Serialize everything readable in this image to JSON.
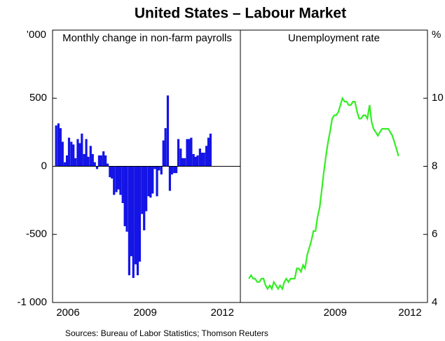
{
  "title": "United States – Labour Market",
  "source": "Sources: Bureau of Labor Statistics; Thomson Reuters",
  "chart_data": [
    {
      "type": "bar",
      "title": "Monthly change in non-farm payrolls",
      "y_unit": "’000",
      "color": "#1414e6",
      "x": [
        2006.04,
        2006.13,
        2006.21,
        2006.29,
        2006.38,
        2006.46,
        2006.54,
        2006.63,
        2006.71,
        2006.79,
        2006.88,
        2006.96,
        2007.04,
        2007.13,
        2007.21,
        2007.29,
        2007.38,
        2007.46,
        2007.54,
        2007.63,
        2007.71,
        2007.79,
        2007.88,
        2007.96,
        2008.04,
        2008.13,
        2008.21,
        2008.29,
        2008.38,
        2008.46,
        2008.54,
        2008.63,
        2008.71,
        2008.79,
        2008.88,
        2008.96,
        2009.04,
        2009.13,
        2009.21,
        2009.29,
        2009.38,
        2009.46,
        2009.54,
        2009.63,
        2009.71,
        2009.79,
        2009.88,
        2009.96,
        2010.04,
        2010.13,
        2010.21,
        2010.29,
        2010.38,
        2010.46,
        2010.54,
        2010.63,
        2010.71,
        2010.79,
        2010.88,
        2010.96,
        2011.04,
        2011.13,
        2011.21,
        2011.29,
        2011.38,
        2011.46,
        2011.54,
        2011.63,
        2011.71,
        2011.79,
        2011.88,
        2011.96,
        2012.04
      ],
      "values": [
        300,
        315,
        280,
        180,
        30,
        80,
        210,
        180,
        160,
        60,
        200,
        170,
        240,
        90,
        200,
        70,
        150,
        90,
        30,
        -20,
        80,
        80,
        110,
        80,
        20,
        -80,
        -90,
        -210,
        -190,
        -170,
        -210,
        -270,
        -440,
        -480,
        -800,
        -660,
        -820,
        -720,
        -800,
        -700,
        -350,
        -470,
        -330,
        -220,
        -230,
        -200,
        -20,
        -220,
        -30,
        -60,
        190,
        280,
        520,
        -180,
        -60,
        -50,
        -50,
        200,
        130,
        60,
        60,
        200,
        200,
        210,
        90,
        70,
        80,
        130,
        100,
        100,
        150,
        210,
        240
      ],
      "xlim": [
        2005.9,
        2013.2
      ],
      "xticks": [
        {
          "value": 2006.5,
          "label": "2006"
        },
        {
          "value": 2009.5,
          "label": "2009"
        },
        {
          "value": 2012.5,
          "label": "2012"
        }
      ],
      "ylim": [
        -1000,
        1000
      ],
      "yticks": [
        {
          "value": -1000,
          "label": "-1 000"
        },
        -500,
        0,
        500
      ]
    },
    {
      "type": "line",
      "title": "Unemployment rate",
      "y_unit": "%",
      "color": "#33ee22",
      "x": [
        2006.04,
        2006.13,
        2006.21,
        2006.29,
        2006.38,
        2006.46,
        2006.54,
        2006.63,
        2006.71,
        2006.79,
        2006.88,
        2006.96,
        2007.04,
        2007.13,
        2007.21,
        2007.29,
        2007.38,
        2007.46,
        2007.54,
        2007.63,
        2007.71,
        2007.79,
        2007.88,
        2007.96,
        2008.04,
        2008.13,
        2008.21,
        2008.29,
        2008.38,
        2008.46,
        2008.54,
        2008.63,
        2008.71,
        2008.79,
        2008.88,
        2008.96,
        2009.04,
        2009.13,
        2009.21,
        2009.29,
        2009.38,
        2009.46,
        2009.54,
        2009.63,
        2009.71,
        2009.79,
        2009.88,
        2009.96,
        2010.04,
        2010.13,
        2010.21,
        2010.29,
        2010.38,
        2010.46,
        2010.54,
        2010.63,
        2010.71,
        2010.79,
        2010.88,
        2010.96,
        2011.04,
        2011.13,
        2011.21,
        2011.29,
        2011.38,
        2011.46,
        2011.54,
        2011.63,
        2011.71,
        2011.79,
        2011.88,
        2011.96,
        2012.04
      ],
      "values": [
        4.7,
        4.8,
        4.7,
        4.7,
        4.6,
        4.6,
        4.7,
        4.7,
        4.5,
        4.4,
        4.5,
        4.4,
        4.6,
        4.5,
        4.4,
        4.5,
        4.4,
        4.6,
        4.7,
        4.6,
        4.7,
        4.7,
        4.7,
        5.0,
        5.0,
        4.9,
        5.1,
        5.0,
        5.4,
        5.6,
        5.8,
        6.1,
        6.1,
        6.5,
        6.8,
        7.3,
        7.8,
        8.3,
        8.7,
        9.0,
        9.4,
        9.5,
        9.5,
        9.6,
        9.8,
        10.0,
        9.9,
        9.9,
        9.8,
        9.8,
        9.9,
        9.9,
        9.6,
        9.4,
        9.4,
        9.5,
        9.5,
        9.4,
        9.8,
        9.3,
        9.1,
        9.0,
        8.9,
        9.0,
        9.1,
        9.1,
        9.1,
        9.1,
        9.0,
        8.9,
        8.7,
        8.5,
        8.3
      ],
      "xlim": [
        2005.7,
        2013.2
      ],
      "xticks": [
        {
          "value": 2009.5,
          "label": "2009"
        },
        {
          "value": 2012.5,
          "label": "2012"
        }
      ],
      "ylim": [
        4,
        12
      ],
      "yticks": [
        4,
        6,
        8,
        10
      ]
    }
  ]
}
